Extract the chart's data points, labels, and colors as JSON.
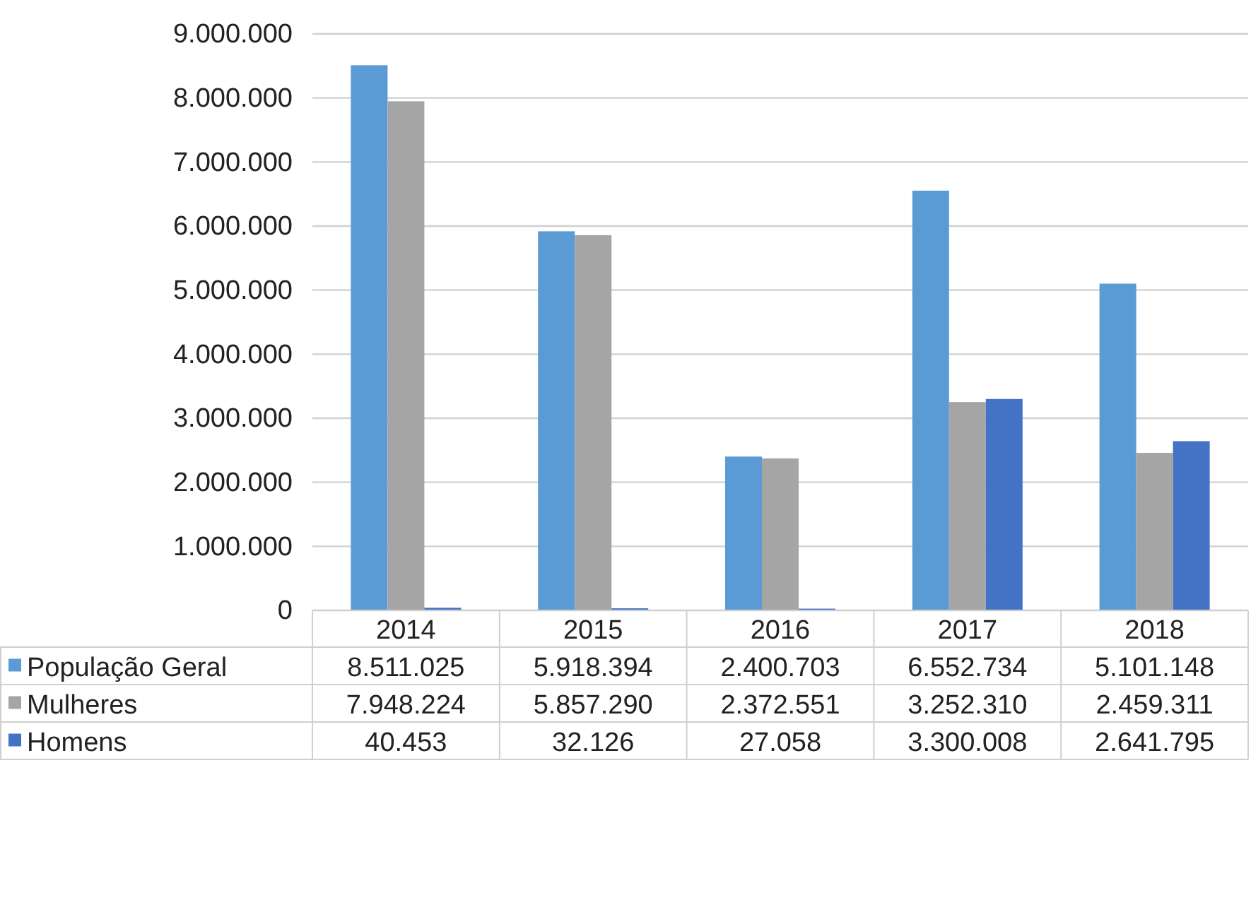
{
  "chart_data": {
    "type": "bar",
    "categories": [
      "2014",
      "2015",
      "2016",
      "2017",
      "2018"
    ],
    "series": [
      {
        "name": "População Geral",
        "color": "#5b9bd5",
        "values": [
          8511025,
          5918394,
          2400703,
          6552734,
          5101148
        ],
        "value_labels": [
          "8.511.025",
          "5.918.394",
          "2.400.703",
          "6.552.734",
          "5.101.148"
        ]
      },
      {
        "name": "Mulheres",
        "color": "#a5a5a5",
        "values": [
          7948224,
          5857290,
          2372551,
          3252310,
          2459311
        ],
        "value_labels": [
          "7.948.224",
          "5.857.290",
          "2.372.551",
          "3.252.310",
          "2.459.311"
        ]
      },
      {
        "name": "Homens",
        "color": "#4472c4",
        "values": [
          40453,
          32126,
          27058,
          3300008,
          2641795
        ],
        "value_labels": [
          "40.453",
          "32.126",
          "27.058",
          "3.300.008",
          "2.641.795"
        ]
      }
    ],
    "ylim": [
      0,
      9000000
    ],
    "yticks": [
      {
        "value": 0,
        "label": "0"
      },
      {
        "value": 1000000,
        "label": "1.000.000"
      },
      {
        "value": 2000000,
        "label": "2.000.000"
      },
      {
        "value": 3000000,
        "label": "3.000.000"
      },
      {
        "value": 4000000,
        "label": "4.000.000"
      },
      {
        "value": 5000000,
        "label": "5.000.000"
      },
      {
        "value": 6000000,
        "label": "6.000.000"
      },
      {
        "value": 7000000,
        "label": "7.000.000"
      },
      {
        "value": 8000000,
        "label": "8.000.000"
      },
      {
        "value": 9000000,
        "label": "9.000.000"
      }
    ],
    "grid": "y",
    "legend": "bottom"
  }
}
